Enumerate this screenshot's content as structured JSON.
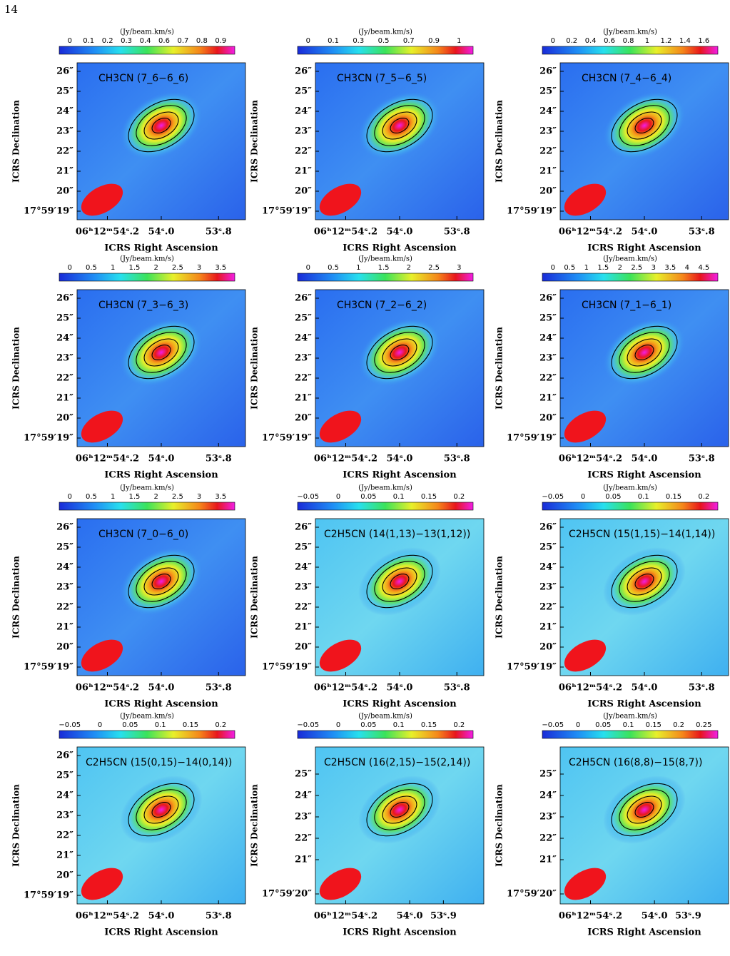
{
  "page_number": "14",
  "panels": [
    {
      "unit": "(Jy/beam.km/s)",
      "colorbar_ticks": [
        "0",
        "0.1",
        "0.2",
        "0.3",
        "0.4",
        "0.6",
        "0.7",
        "0.8",
        "0.9"
      ],
      "title": "CH3CN (7_6−6_6)",
      "y_label": "ICRS Declination",
      "x_label": "ICRS Right Ascension",
      "y_ticks": [
        "26″",
        "25″",
        "24″",
        "23″",
        "22″",
        "21″",
        "20″",
        "17°59′19″"
      ],
      "x_ticks": [
        "06ʰ12ᵐ54ˢ.2",
        "54ˢ.0",
        "53ˢ.8"
      ]
    },
    {
      "unit": "(Jy/beam.km/s)",
      "colorbar_ticks": [
        "0",
        "0.1",
        "0.3",
        "0.5",
        "0.7",
        "0.9",
        "1"
      ],
      "title": "CH3CN (7_5−6_5)",
      "y_label": "ICRS Declination",
      "x_label": "ICRS Right Ascension",
      "y_ticks": [
        "26″",
        "25″",
        "24″",
        "23″",
        "22″",
        "21″",
        "20″",
        "17°59′19″"
      ],
      "x_ticks": [
        "06ʰ12ᵐ54ˢ.2",
        "54ˢ.0",
        "53ˢ.8"
      ]
    },
    {
      "unit": "(Jy/beam.km/s)",
      "colorbar_ticks": [
        "0",
        "0.2",
        "0.4",
        "0.6",
        "0.8",
        "1",
        "1.2",
        "1.4",
        "1.6"
      ],
      "title": "CH3CN (7_4−6_4)",
      "y_label": "ICRS Declination",
      "x_label": "ICRS Right Ascension",
      "y_ticks": [
        "26″",
        "25″",
        "24″",
        "23″",
        "22″",
        "21″",
        "20″",
        "17°59′19″"
      ],
      "x_ticks": [
        "06ʰ12ᵐ54ˢ.2",
        "54ˢ.0",
        "53ˢ.8"
      ]
    },
    {
      "unit": "(Jy/beam.km/s)",
      "colorbar_ticks": [
        "0",
        "0.5",
        "1",
        "1.5",
        "2",
        "2.5",
        "3",
        "3.5"
      ],
      "title": "CH3CN (7_3−6_3)",
      "y_label": "ICRS Declination",
      "x_label": "ICRS Right Ascension",
      "y_ticks": [
        "26″",
        "25″",
        "24″",
        "23″",
        "22″",
        "21″",
        "20″",
        "17°59′19″"
      ],
      "x_ticks": [
        "06ʰ12ᵐ54ˢ.2",
        "54ˢ.0",
        "53ˢ.8"
      ]
    },
    {
      "unit": "(Jy/beam.km/s)",
      "colorbar_ticks": [
        "0",
        "0.5",
        "1",
        "1.5",
        "2",
        "2.5",
        "3"
      ],
      "title": "CH3CN (7_2−6_2)",
      "y_label": "ICRS Declination",
      "x_label": "ICRS Right Ascension",
      "y_ticks": [
        "26″",
        "25″",
        "24″",
        "23″",
        "22″",
        "21″",
        "20″",
        "17°59′19″"
      ],
      "x_ticks": [
        "06ʰ12ᵐ54ˢ.2",
        "54ˢ.0",
        "53ˢ.8"
      ]
    },
    {
      "unit": "(Jy/beam.km/s)",
      "colorbar_ticks": [
        "0",
        "0.5",
        "1",
        "1.5",
        "2",
        "2.5",
        "3",
        "3.5",
        "4",
        "4.5"
      ],
      "title": "CH3CN (7_1−6_1)",
      "y_label": "ICRS Declination",
      "x_label": "ICRS Right Ascension",
      "y_ticks": [
        "26″",
        "25″",
        "24″",
        "23″",
        "22″",
        "21″",
        "20″",
        "17°59′19″"
      ],
      "x_ticks": [
        "06ʰ12ᵐ54ˢ.2",
        "54ˢ.0",
        "53ˢ.8"
      ]
    },
    {
      "unit": "(Jy/beam.km/s)",
      "colorbar_ticks": [
        "0",
        "0.5",
        "1",
        "1.5",
        "2",
        "2.5",
        "3",
        "3.5"
      ],
      "title": "CH3CN (7_0−6_0)",
      "y_label": "ICRS Declination",
      "x_label": "ICRS Right Ascension",
      "y_ticks": [
        "26″",
        "25″",
        "24″",
        "23″",
        "22″",
        "21″",
        "20″",
        "17°59′19″"
      ],
      "x_ticks": [
        "06ʰ12ᵐ54ˢ.2",
        "54ˢ.0",
        "53ˢ.8"
      ]
    },
    {
      "unit": "(Jy/beam.km/s)",
      "colorbar_ticks": [
        "−0.05",
        "0",
        "0.05",
        "0.1",
        "0.15",
        "0.2"
      ],
      "title": "C2H5CN (14(1,13)−13(1,12))",
      "y_label": "ICRS Declination",
      "x_label": "ICRS Right Ascension",
      "y_ticks": [
        "26″",
        "25″",
        "24″",
        "23″",
        "22″",
        "21″",
        "20″",
        "17°59′19″"
      ],
      "x_ticks": [
        "06ʰ12ᵐ54ˢ.2",
        "54ˢ.0",
        "53ˢ.8"
      ]
    },
    {
      "unit": "(Jy/beam.km/s)",
      "colorbar_ticks": [
        "−0.05",
        "0",
        "0.05",
        "0.1",
        "0.15",
        "0.2"
      ],
      "title": "C2H5CN (15(1,15)−14(1,14))",
      "y_label": "ICRS Declination",
      "x_label": "ICRS Right Ascension",
      "y_ticks": [
        "26″",
        "25″",
        "24″",
        "23″",
        "22″",
        "21″",
        "20″",
        "17°59′19″"
      ],
      "x_ticks": [
        "06ʰ12ᵐ54ˢ.2",
        "54ˢ.0",
        "53ˢ.8"
      ]
    },
    {
      "unit": "(Jy/beam.km/s)",
      "colorbar_ticks": [
        "−0.05",
        "0",
        "0.05",
        "0.1",
        "0.15",
        "0.2"
      ],
      "title": "C2H5CN (15(0,15)−14(0,14))",
      "y_label": "ICRS Declination",
      "x_label": "ICRS Right Ascension",
      "y_ticks": [
        "26″",
        "25″",
        "24″",
        "23″",
        "22″",
        "21″",
        "20″",
        "17°59′19″"
      ],
      "x_ticks": [
        "06ʰ12ᵐ54ˢ.2",
        "54ˢ.0",
        "53ˢ.8"
      ]
    },
    {
      "unit": "(Jy/beam.km/s)",
      "colorbar_ticks": [
        "−0.05",
        "0",
        "0.05",
        "0.1",
        "0.15",
        "0.2"
      ],
      "title": "C2H5CN (16(2,15)−15(2,14))",
      "y_label": "ICRS Declination",
      "x_label": "ICRS Right Ascension",
      "y_ticks": [
        "25″",
        "24″",
        "23″",
        "22″",
        "21″",
        "17°59′20″"
      ],
      "x_ticks": [
        "06ʰ12ᵐ54ˢ.2",
        "54ˢ.0",
        "53ˢ.9"
      ]
    },
    {
      "unit": "(Jy/beam.km/s)",
      "colorbar_ticks": [
        "−0.05",
        "0",
        "0.05",
        "0.1",
        "0.15",
        "0.2",
        "0.25"
      ],
      "title": "C2H5CN (16(8,8)−15(8,7))",
      "y_label": "ICRS Declination",
      "x_label": "ICRS Right Ascension",
      "y_ticks": [
        "25″",
        "24″",
        "23″",
        "22″",
        "21″",
        "17°59′20″"
      ],
      "x_ticks": [
        "06ʰ12ᵐ54ˢ.2",
        "54ˢ.0",
        "53ˢ.9"
      ]
    }
  ]
}
